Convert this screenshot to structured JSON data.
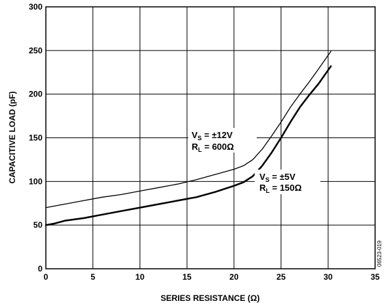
{
  "chart_data": {
    "type": "line",
    "xlabel": "SERIES RESISTANCE (Ω)",
    "ylabel": "CAPACITIVE LOAD (pF)",
    "xlim": [
      0,
      35
    ],
    "ylim": [
      0,
      300
    ],
    "x_ticks": [
      "0",
      "5",
      "10",
      "15",
      "20",
      "25",
      "30",
      "35"
    ],
    "y_ticks": [
      "0",
      "50",
      "100",
      "150",
      "200",
      "250",
      "300"
    ],
    "grid": true,
    "figure_id": "06523-019",
    "series": [
      {
        "name": "VS = ±12V, RL = 600Ω",
        "label_lines": [
          {
            "main": "V",
            "sub": "S",
            "rest": " = ±12V"
          },
          {
            "main": "R",
            "sub": "L",
            "rest": " = 600Ω"
          }
        ],
        "x": [
          0,
          2,
          4,
          6,
          8,
          10,
          12,
          14,
          16,
          18,
          20,
          21,
          22,
          23,
          24,
          25,
          26,
          27,
          28,
          29,
          30.3
        ],
        "y": [
          70,
          74,
          78,
          82,
          85,
          89,
          93,
          97,
          102,
          108,
          114,
          118,
          125,
          137,
          152,
          168,
          185,
          200,
          214,
          229,
          249
        ]
      },
      {
        "name": "VS = ±5V, RL = 150Ω",
        "label_lines": [
          {
            "main": "V",
            "sub": "S",
            "rest": " = ±5V"
          },
          {
            "main": "R",
            "sub": "L",
            "rest": " = 150Ω"
          }
        ],
        "x": [
          0,
          1,
          2,
          4,
          6,
          8,
          10,
          12,
          14,
          16,
          18,
          20,
          21,
          22,
          23,
          24,
          25,
          26,
          27,
          28,
          29,
          30.3
        ],
        "y": [
          50,
          52,
          55,
          58,
          62,
          66,
          70,
          74,
          78,
          82,
          88,
          95,
          99,
          106,
          118,
          133,
          150,
          168,
          185,
          199,
          212,
          232
        ]
      }
    ]
  }
}
